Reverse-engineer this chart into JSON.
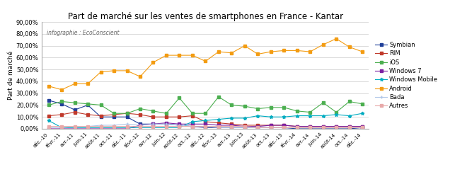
{
  "title": "Part de marché sur les ventes de smartphones en France - Kantar",
  "subtitle": "infographie : EcoConscient",
  "ylabel": "Part de marché",
  "ylim": [
    0,
    0.9
  ],
  "yticks": [
    0.0,
    0.1,
    0.2,
    0.3,
    0.4,
    0.5,
    0.6,
    0.7,
    0.8,
    0.9
  ],
  "ytick_labels": [
    "0,00%",
    "10,00%",
    "20,00%",
    "30,00%",
    "40,00%",
    "50,00%",
    "60,00%",
    "70,00%",
    "80,00%",
    "90,00%"
  ],
  "labels": [
    "déc.-10",
    "févr.-11",
    "avr.-11",
    "juin-11",
    "août-11",
    "oct.-11",
    "déc.-11",
    "févr.-12",
    "avr.-12",
    "juin-12",
    "août-12",
    "oct.-12",
    "déc.-12",
    "févr.-13",
    "avr.-13",
    "juin-13",
    "août-13",
    "oct.-13",
    "déc.-13",
    "févr.-14",
    "avr.-14",
    "juin-14",
    "août-14",
    "oct.-14",
    "déc.-14"
  ],
  "series": {
    "Symbian": {
      "color": "#1f3f99",
      "marker": "s",
      "values": [
        0.24,
        0.21,
        0.16,
        0.2,
        0.1,
        0.1,
        0.1,
        0.04,
        0.04,
        0.04,
        0.03,
        0.02,
        0.01,
        0.01,
        0.01,
        0.01,
        0.01,
        0.01,
        0.01,
        0.0,
        0.0,
        0.0,
        0.0,
        0.0,
        0.01
      ]
    },
    "RIM": {
      "color": "#c0392b",
      "marker": "s",
      "values": [
        0.11,
        0.12,
        0.14,
        0.12,
        0.11,
        0.12,
        0.13,
        0.12,
        0.1,
        0.1,
        0.1,
        0.11,
        0.06,
        0.05,
        0.04,
        0.03,
        0.03,
        0.03,
        0.03,
        0.02,
        0.02,
        0.02,
        0.02,
        0.02,
        0.02
      ]
    },
    "iOS": {
      "color": "#4caf50",
      "marker": "s",
      "values": [
        0.2,
        0.23,
        0.22,
        0.21,
        0.2,
        0.13,
        0.13,
        0.17,
        0.15,
        0.13,
        0.26,
        0.13,
        0.13,
        0.27,
        0.2,
        0.19,
        0.17,
        0.18,
        0.18,
        0.15,
        0.14,
        0.22,
        0.14,
        0.23,
        0.21
      ]
    },
    "Windows 7": {
      "color": "#7b1fa2",
      "marker": "s",
      "values": [
        0.0,
        0.0,
        0.0,
        0.0,
        0.0,
        0.0,
        0.0,
        0.03,
        0.04,
        0.05,
        0.04,
        0.04,
        0.04,
        0.03,
        0.03,
        0.02,
        0.02,
        0.03,
        0.03,
        0.02,
        0.02,
        0.02,
        0.02,
        0.02,
        0.02
      ]
    },
    "Windows Mobile": {
      "color": "#00acc1",
      "marker": "*",
      "values": [
        0.07,
        0.01,
        0.01,
        0.01,
        0.01,
        0.01,
        0.01,
        0.01,
        0.01,
        0.01,
        0.01,
        0.06,
        0.07,
        0.08,
        0.09,
        0.09,
        0.11,
        0.1,
        0.1,
        0.11,
        0.11,
        0.11,
        0.12,
        0.11,
        0.13
      ]
    },
    "Android": {
      "color": "#f39c12",
      "marker": "s",
      "values": [
        0.36,
        0.33,
        0.38,
        0.38,
        0.48,
        0.49,
        0.49,
        0.44,
        0.56,
        0.62,
        0.62,
        0.62,
        0.57,
        0.65,
        0.64,
        0.7,
        0.63,
        0.65,
        0.66,
        0.66,
        0.65,
        0.71,
        0.76,
        0.69,
        0.65
      ]
    },
    "Bada": {
      "color": "#aec6e8",
      "marker": "+",
      "values": [
        0.01,
        0.01,
        0.02,
        0.02,
        0.03,
        0.03,
        0.04,
        0.03,
        0.04,
        0.04,
        0.03,
        0.02,
        0.02,
        0.01,
        0.01,
        0.01,
        0.01,
        0.01,
        0.01,
        0.01,
        0.01,
        0.01,
        0.01,
        0.01,
        0.01
      ]
    },
    "Autres": {
      "color": "#e8a9a9",
      "marker": "s",
      "values": [
        0.02,
        0.02,
        0.02,
        0.02,
        0.02,
        0.02,
        0.02,
        0.02,
        0.02,
        0.02,
        0.02,
        0.02,
        0.02,
        0.02,
        0.02,
        0.02,
        0.01,
        0.01,
        0.01,
        0.01,
        0.01,
        0.01,
        0.01,
        0.01,
        0.01
      ]
    }
  },
  "fig_width": 6.6,
  "fig_height": 2.6,
  "dpi": 100
}
